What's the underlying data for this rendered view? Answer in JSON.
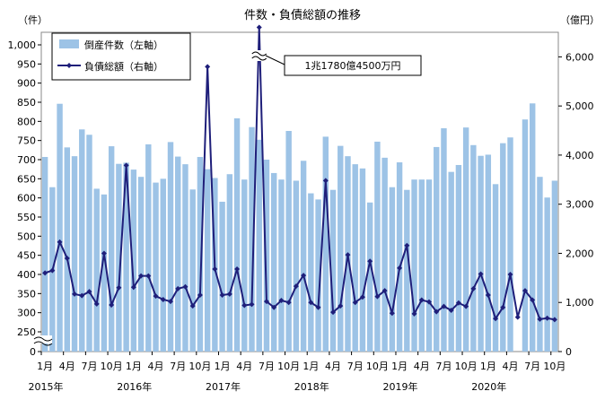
{
  "chart_data": {
    "type": "bar+line",
    "title": "件数・負債総額の推移",
    "y_left_label": "（件）",
    "y_right_label": "（億円）",
    "y_left_ticks": [
      "0",
      "250",
      "300",
      "350",
      "400",
      "450",
      "500",
      "550",
      "600",
      "650",
      "700",
      "750",
      "800",
      "850",
      "900",
      "950",
      "1,000"
    ],
    "y_right_ticks": [
      "0",
      "1,000",
      "2,000",
      "3,000",
      "4,000",
      "5,000",
      "6,000"
    ],
    "ylim_left": [
      250,
      1000
    ],
    "ylim_right": [
      0,
      6500
    ],
    "axis_break_left": "0–250",
    "legend": {
      "position": "top-left",
      "bars_label": "倒産件数（左軸）",
      "line_label": "負債総額（右軸）"
    },
    "annotation": "1兆1780億4500万円",
    "annotation_month_index": 29,
    "x_tick_labels": [
      "1月",
      "4月",
      "7月",
      "10月",
      "1月",
      "4月",
      "7月",
      "10月",
      "1月",
      "4月",
      "7月",
      "10月",
      "1月",
      "4月",
      "7月",
      "10月",
      "1月",
      "4月",
      "7月",
      "10月",
      "1月",
      "4月",
      "7月",
      "10月"
    ],
    "x_tick_month_index": [
      0,
      3,
      6,
      9,
      12,
      15,
      18,
      21,
      24,
      27,
      30,
      33,
      36,
      39,
      42,
      45,
      48,
      51,
      54,
      57,
      60,
      63,
      66,
      69
    ],
    "year_labels": [
      "2015年",
      "2016年",
      "2017年",
      "2018年",
      "2019年",
      "2020年"
    ],
    "year_month_index": [
      0,
      12,
      24,
      36,
      48,
      60
    ],
    "bar_color": "#9dc3e6",
    "line_color": "#1f1f7a",
    "series": [
      {
        "name": "倒産件数（左軸）",
        "axis": "left",
        "values": [
          707,
          628,
          846,
          732,
          709,
          779,
          765,
          624,
          609,
          735,
          689,
          692,
          674,
          655,
          740,
          640,
          650,
          746,
          708,
          688,
          622,
          707,
          675,
          652,
          590,
          662,
          808,
          648,
          785,
          752,
          700,
          665,
          648,
          775,
          645,
          697,
          612,
          596,
          760,
          621,
          736,
          709,
          688,
          677,
          588,
          747,
          705,
          628,
          693,
          621,
          648,
          648,
          648,
          733,
          782,
          668,
          686,
          784,
          738,
          710,
          713,
          636,
          743,
          758,
          null,
          805,
          847,
          655,
          601,
          645
        ]
      },
      {
        "name": "負債総額（右軸）",
        "axis": "right",
        "values": [
          1600,
          1650,
          2230,
          1900,
          1170,
          1140,
          1220,
          970,
          2000,
          950,
          1300,
          3790,
          1310,
          1540,
          1540,
          1130,
          1060,
          1020,
          1280,
          1320,
          930,
          1150,
          5800,
          1680,
          1150,
          1170,
          1680,
          940,
          960,
          6600,
          1020,
          900,
          1040,
          1000,
          1330,
          1550,
          1000,
          900,
          3480,
          800,
          930,
          1970,
          1000,
          1110,
          1840,
          1120,
          1240,
          780,
          1700,
          2160,
          770,
          1050,
          1010,
          810,
          920,
          840,
          990,
          920,
          1280,
          1580,
          1150,
          670,
          900,
          1570,
          700,
          1240,
          1050,
          660,
          680,
          650
        ]
      }
    ]
  }
}
